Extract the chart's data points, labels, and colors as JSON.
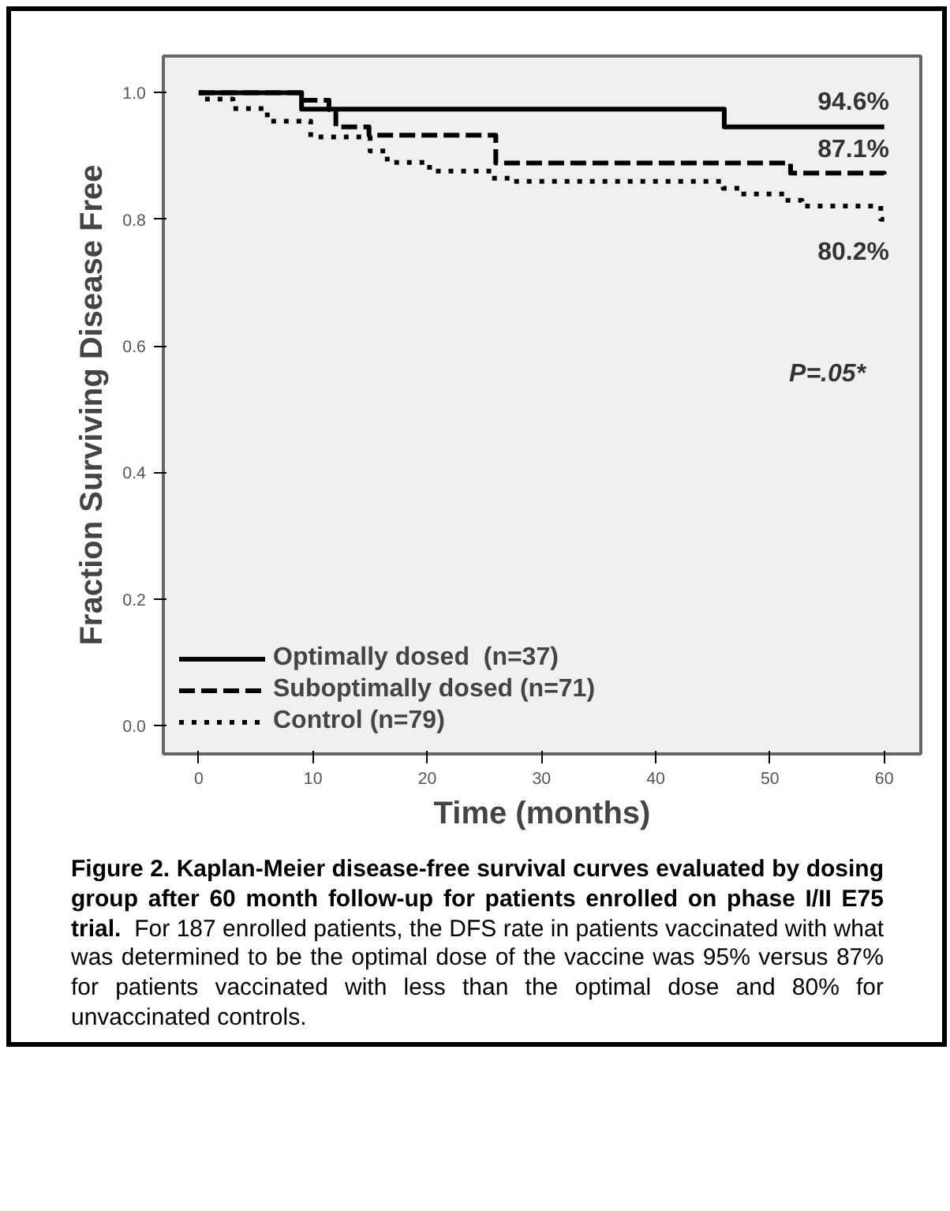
{
  "chart_data": {
    "type": "step",
    "xlabel": "Time (months)",
    "ylabel": "Fraction Surviving Disease Free",
    "xlim": [
      -3.1,
      63.2
    ],
    "ylim": [
      -0.045,
      1.058
    ],
    "xticks": [
      0,
      10,
      20,
      30,
      40,
      50,
      60
    ],
    "yticks": [
      {
        "value": 0,
        "label": "0.0"
      },
      {
        "value": 0.2,
        "label": "0.2"
      },
      {
        "value": 0.4,
        "label": "0.4"
      },
      {
        "value": 0.6,
        "label": "0.6"
      },
      {
        "value": 0.8,
        "label": "0.8"
      },
      {
        "value": 1,
        "label": "1.0"
      }
    ],
    "legend": "bottom left",
    "grid": false,
    "series": [
      {
        "name": "Optimally dosed  (n=37)",
        "color": "#000000",
        "line_style": "solid",
        "x": [
          0,
          9,
          46,
          60
        ],
        "values": [
          1.0,
          0.974,
          0.946,
          0.946
        ]
      },
      {
        "name": "Suboptimally dosed (n=71)",
        "color": "#000000",
        "line_style": "dashed",
        "x": [
          0,
          9,
          11.4,
          12,
          14.9,
          26,
          51.8,
          60
        ],
        "values": [
          1.0,
          0.988,
          0.973,
          0.946,
          0.933,
          0.889,
          0.873,
          0.871
        ]
      },
      {
        "name": "Control (n=79)",
        "color": "#000000",
        "line_style": "dotted",
        "x": [
          0,
          0.5,
          3,
          6,
          9.8,
          15,
          16.5,
          20.2,
          25.6,
          27.6,
          45.9,
          47.4,
          51.3,
          52.8,
          59.7,
          60
        ],
        "values": [
          1.0,
          0.99,
          0.975,
          0.955,
          0.93,
          0.908,
          0.89,
          0.876,
          0.865,
          0.86,
          0.849,
          0.84,
          0.83,
          0.821,
          0.8,
          0.8
        ]
      }
    ],
    "annotations": [
      "94.6%",
      "87.1%",
      "80.2%",
      "P=.05*",
      "Figure 2.  Kaplan-Meier disease-free survival curves evaluated by dosing group after 60 month follow-up for patients enrolled on phase I/II E75 trial.",
      "For 187 enrolled patients, the DFS rate in patients vaccinated with what was determined to be the optimal dose of the vaccine was 95% versus 87% for patients vaccinated with less than the optimal dose and 80% for unvaccinated controls."
    ]
  }
}
